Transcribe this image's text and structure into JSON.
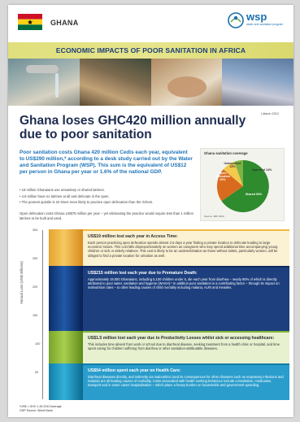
{
  "header": {
    "country": "GHANA",
    "logo_text": "wsp",
    "logo_sub": "water and sanitation program"
  },
  "banner": {
    "title": "ECONOMIC IMPACTS OF POOR SANITATION IN AFRICA"
  },
  "date": "| March 2012",
  "headline": "Ghana loses GHC420 million annually due to poor sanitation",
  "intro": "Poor sanitation costs Ghana 420 million Cedis each year, equivalent to US$290 million,* according to a desk study carried out by the Water and Sanitation Program (WSP). This sum is the equivalent of US$12 per person in Ghana per year or 1.6% of the national GDP.",
  "bullets": [
    "18 million Ghanaians use unsanitary or shared latrines.",
    "4.8 million have no latrines at all and defecate in the open.",
    "The poorest quintile is 22 times more likely to practice open defecation than the richest."
  ],
  "open_defecation": "Open defecation costs Ghana US$79 million per year – yet eliminating the practice would require less than 1 million latrines to be built and used.",
  "coverage": {
    "title": "Ghana sanitation coverage",
    "source": "Source: JMP 2010",
    "colors": {
      "open": "#d96b1e",
      "unimproved": "#f2c94c",
      "improved": "#7cb342",
      "shared": "#2e8b2e"
    },
    "labels": {
      "open": "Open defecation 20%",
      "unimproved": "Unimproved 13%",
      "improved": "Improved 14%",
      "shared": "Shared 53%"
    }
  },
  "chart_data": {
    "type": "bar",
    "ylabel": "Annual Loss (US$ millions)",
    "ticks": [
      "300",
      "250",
      "200",
      "150",
      "100",
      "50"
    ],
    "ylim": [
      0,
      300
    ],
    "series": [
      {
        "value": 19,
        "color": "#f2b93d"
      },
      {
        "value": 215,
        "color": "#1d3f7e"
      },
      {
        "value": 1.5,
        "color": "#84b536"
      },
      {
        "value": 54,
        "color": "#2a9dcc"
      }
    ]
  },
  "categories": [
    {
      "head": "US$19 million lost each year in Access Time:",
      "body": "Each person practicing open defecation spends almost 2.5 days a year finding a private location to defecate leading to large economic losses. This cost falls disproportionately on women as caregivers who may spend additional time accompanying young children or sick or elderly relatives. This cost is likely to be an underestimation as those without toilets, particularly women, will be obliged to find a private location for urination as well."
    },
    {
      "head": "US$215 million lost each year due to Premature Death:",
      "body": "Approximately 19,000 Ghanaians, including 5,100 children under 5, die each year from diarrhea – nearly 90% of which is directly attributed to poor water, sanitation and hygiene (WASH).* In addition poor sanitation is a contributing factor – through its impact on malnutrition rates – to other leading causes of child mortality including malaria, ALRI and measles."
    },
    {
      "head": "US$1.5 million lost each year due to Productivity Losses whilst sick or accessing healthcare:",
      "body": "This includes time absent from work or school due to diarrheal disease, seeking treatment from a health clinic or hospital, and time spent caring for children suffering from diarrhea or other sanitation-attributable diseases."
    },
    {
      "head": "US$54 million spent each year on Health Care:",
      "body": "Diarrheal diseases directly, and indirectly via malnutrition (and its consequences for other diseases such as respiratory infections and malaria) are all leading causes of morbidity. Costs associated with health seeking behaviour include consultation, medication, transport and in some cases hospitalisation – which place a heavy burden on households and government spending."
    }
  ],
  "footer": {
    "line1": "*US$ = GHC 1.45 2010 Average",
    "line2": "GDP Source: World Bank"
  }
}
